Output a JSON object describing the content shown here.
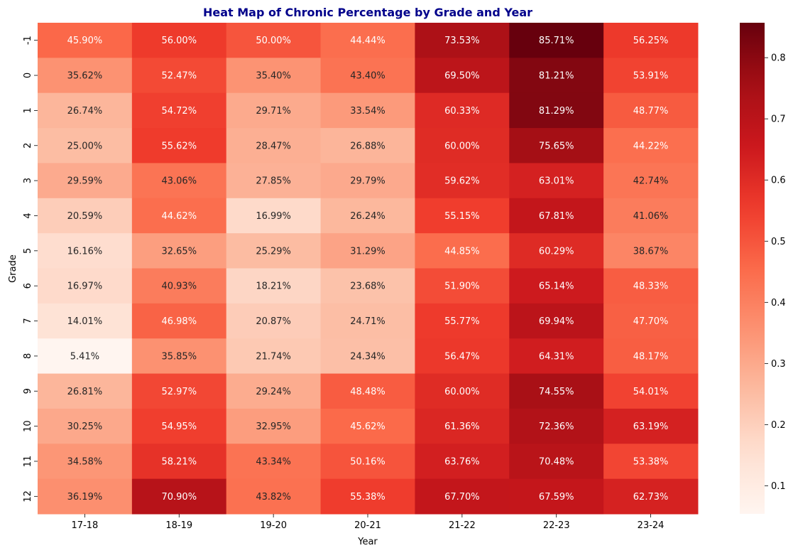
{
  "chart_data": {
    "type": "heatmap",
    "title": "Heat Map of Chronic Percentage by Grade and Year",
    "xlabel": "Year",
    "ylabel": "Grade",
    "x": [
      "17-18",
      "18-19",
      "19-20",
      "20-21",
      "21-22",
      "22-23",
      "23-24"
    ],
    "y": [
      "-1",
      "0",
      "1",
      "2",
      "3",
      "4",
      "5",
      "6",
      "7",
      "8",
      "9",
      "10",
      "11",
      "12"
    ],
    "values": [
      [
        0.459,
        0.56,
        0.5,
        0.4444,
        0.7353,
        0.8571,
        0.5625
      ],
      [
        0.3562,
        0.5247,
        0.354,
        0.434,
        0.695,
        0.8121,
        0.5391
      ],
      [
        0.2674,
        0.5472,
        0.2971,
        0.3354,
        0.6033,
        0.8129,
        0.4877
      ],
      [
        0.25,
        0.5562,
        0.2847,
        0.2688,
        0.6,
        0.7565,
        0.4422
      ],
      [
        0.2959,
        0.4306,
        0.2785,
        0.2979,
        0.5962,
        0.6301,
        0.4274
      ],
      [
        0.2059,
        0.4462,
        0.1699,
        0.2624,
        0.5515,
        0.6781,
        0.4106
      ],
      [
        0.1616,
        0.3265,
        0.2529,
        0.3129,
        0.4485,
        0.6029,
        0.3867
      ],
      [
        0.1697,
        0.4093,
        0.1821,
        0.2368,
        0.519,
        0.6514,
        0.4833
      ],
      [
        0.1401,
        0.4698,
        0.2087,
        0.2471,
        0.5577,
        0.6994,
        0.477
      ],
      [
        0.0541,
        0.3585,
        0.2174,
        0.2434,
        0.5647,
        0.6431,
        0.4817
      ],
      [
        0.2681,
        0.5297,
        0.2924,
        0.4848,
        0.6,
        0.7455,
        0.5401
      ],
      [
        0.3025,
        0.5495,
        0.3295,
        0.4562,
        0.6136,
        0.7236,
        0.6319
      ],
      [
        0.3458,
        0.5821,
        0.4334,
        0.5016,
        0.6376,
        0.7048,
        0.5338
      ],
      [
        0.3619,
        0.709,
        0.4382,
        0.5538,
        0.677,
        0.6759,
        0.6273
      ]
    ],
    "labels": [
      [
        "45.90%",
        "56.00%",
        "50.00%",
        "44.44%",
        "73.53%",
        "85.71%",
        "56.25%"
      ],
      [
        "35.62%",
        "52.47%",
        "35.40%",
        "43.40%",
        "69.50%",
        "81.21%",
        "53.91%"
      ],
      [
        "26.74%",
        "54.72%",
        "29.71%",
        "33.54%",
        "60.33%",
        "81.29%",
        "48.77%"
      ],
      [
        "25.00%",
        "55.62%",
        "28.47%",
        "26.88%",
        "60.00%",
        "75.65%",
        "44.22%"
      ],
      [
        "29.59%",
        "43.06%",
        "27.85%",
        "29.79%",
        "59.62%",
        "63.01%",
        "42.74%"
      ],
      [
        "20.59%",
        "44.62%",
        "16.99%",
        "26.24%",
        "55.15%",
        "67.81%",
        "41.06%"
      ],
      [
        "16.16%",
        "32.65%",
        "25.29%",
        "31.29%",
        "44.85%",
        "60.29%",
        "38.67%"
      ],
      [
        "16.97%",
        "40.93%",
        "18.21%",
        "23.68%",
        "51.90%",
        "65.14%",
        "48.33%"
      ],
      [
        "14.01%",
        "46.98%",
        "20.87%",
        "24.71%",
        "55.77%",
        "69.94%",
        "47.70%"
      ],
      [
        "5.41%",
        "35.85%",
        "21.74%",
        "24.34%",
        "56.47%",
        "64.31%",
        "48.17%"
      ],
      [
        "26.81%",
        "52.97%",
        "29.24%",
        "48.48%",
        "60.00%",
        "74.55%",
        "54.01%"
      ],
      [
        "30.25%",
        "54.95%",
        "32.95%",
        "45.62%",
        "61.36%",
        "72.36%",
        "63.19%"
      ],
      [
        "34.58%",
        "58.21%",
        "43.34%",
        "50.16%",
        "63.76%",
        "70.48%",
        "53.38%"
      ],
      [
        "36.19%",
        "70.90%",
        "43.82%",
        "55.38%",
        "67.70%",
        "67.59%",
        "62.73%"
      ]
    ],
    "colormap": "Reds",
    "vmin": 0.0541,
    "vmax": 0.8571,
    "colorbar": {
      "ticks": [
        0.1,
        0.2,
        0.3,
        0.4,
        0.5,
        0.6,
        0.7,
        0.8
      ],
      "tick_labels": [
        "0.1",
        "0.2",
        "0.3",
        "0.4",
        "0.5",
        "0.6",
        "0.7",
        "0.8"
      ]
    },
    "title_color": "#00008b"
  }
}
